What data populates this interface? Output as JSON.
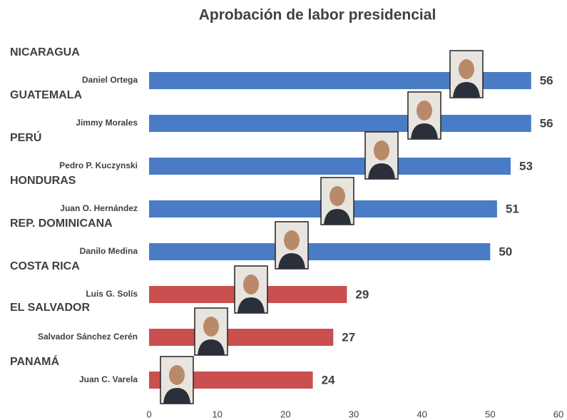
{
  "chart_data": {
    "type": "bar",
    "orientation": "horizontal",
    "title": "Aprobación de labor presidencial",
    "groups": [
      "NICARAGUA",
      "GUATEMALA",
      "PERÚ",
      "HONDURAS",
      "REP. DOMINICANA",
      "COSTA RICA",
      "EL SALVADOR",
      "PANAMÁ"
    ],
    "categories": [
      "Daniel Ortega",
      "Jimmy Morales",
      "Pedro P. Kuczynski",
      "Juan O. Hernández",
      "Danilo Medina",
      "Luis G. Solís",
      "Salvador Sánchez Cerén",
      "Juan C. Varela"
    ],
    "values": [
      56,
      56,
      53,
      51,
      50,
      29,
      27,
      24
    ],
    "colors": [
      "#4a7cc5",
      "#4a7cc5",
      "#4a7cc5",
      "#4a7cc5",
      "#4a7cc5",
      "#c9504e",
      "#c9504e",
      "#c9504e"
    ],
    "xlim": [
      0,
      60
    ],
    "xticks": [
      0,
      10,
      20,
      30,
      40,
      50,
      60
    ],
    "grid": false
  }
}
